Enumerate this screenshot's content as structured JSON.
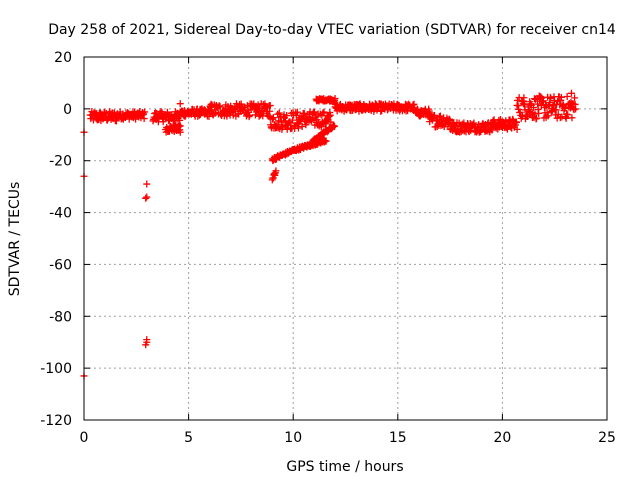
{
  "chart_data": {
    "type": "scatter",
    "title": "Day 258 of 2021, Sidereal Day-to-day VTEC variation (SDTVAR) for receiver cn14",
    "xlabel": "GPS time / hours",
    "ylabel": "SDTVAR / TECUs",
    "xlim": [
      0,
      25
    ],
    "ylim": [
      -120,
      20
    ],
    "xticks": [
      0,
      5,
      10,
      15,
      20,
      25
    ],
    "yticks": [
      20,
      0,
      -20,
      -40,
      -60,
      -80,
      -100,
      -120
    ],
    "grid": true,
    "marker": "+",
    "color": "#ff0000",
    "series": [
      {
        "name": "SDTVAR",
        "segments": [
          {
            "x0": 0.3,
            "x1": 1.6,
            "y": [
              -1,
              -5
            ]
          },
          {
            "x0": 1.6,
            "x1": 2.9,
            "y": [
              -1,
              -4
            ]
          },
          {
            "x0": 3.3,
            "x1": 4.6,
            "y": [
              -1,
              -5
            ]
          },
          {
            "x0": 3.9,
            "x1": 4.6,
            "y": [
              -6,
              -9
            ]
          },
          {
            "x0": 4.6,
            "x1": 6.0,
            "y": [
              0,
              -3
            ]
          },
          {
            "x0": 6.0,
            "x1": 8.9,
            "y": [
              2,
              -3
            ]
          },
          {
            "x0": 8.9,
            "x1": 10.3,
            "y": [
              -1,
              -8
            ]
          },
          {
            "x0": 10.3,
            "x1": 11.8,
            "y": [
              -1,
              -7
            ]
          },
          {
            "x0": 11.1,
            "x1": 12.0,
            "y": [
              4,
              3
            ]
          },
          {
            "x0": 12.0,
            "x1": 13.5,
            "y": [
              2,
              -1
            ]
          },
          {
            "x0": 13.5,
            "x1": 15.8,
            "y": [
              2,
              -1
            ]
          },
          {
            "x0": 15.8,
            "x1": 16.5,
            "y": [
              0,
              -3
            ]
          },
          {
            "x0": 16.5,
            "x1": 17.5,
            "y": [
              -2,
              -7
            ]
          },
          {
            "x0": 17.5,
            "x1": 19.5,
            "y": [
              -5,
              -9
            ]
          },
          {
            "x0": 19.5,
            "x1": 20.7,
            "y": [
              -4,
              -8
            ]
          },
          {
            "x0": 20.7,
            "x1": 23.5,
            "y": [
              5,
              -4
            ]
          }
        ],
        "trends": [
          {
            "x": [
              9.0,
              10.0,
              11.0,
              11.6
            ],
            "y": [
              -19.5,
              -16.0,
              -13.5,
              -12.0
            ]
          },
          {
            "x": [
              10.9,
              11.5,
              12.0
            ],
            "y": [
              -13.0,
              -9.0,
              -6.5
            ]
          },
          {
            "x": [
              9.0,
              9.2
            ],
            "y": [
              -27.0,
              -24.0
            ]
          }
        ],
        "points": [
          {
            "x": 0.0,
            "y": -103
          },
          {
            "x": 0.0,
            "y": -26
          },
          {
            "x": 0.0,
            "y": -9
          },
          {
            "x": 3.0,
            "y": -29
          },
          {
            "x": 3.0,
            "y": -34
          },
          {
            "x": 2.95,
            "y": -34.5
          },
          {
            "x": 3.0,
            "y": -89
          },
          {
            "x": 3.0,
            "y": -90
          },
          {
            "x": 2.95,
            "y": -91
          },
          {
            "x": 4.6,
            "y": 2
          },
          {
            "x": 4.6,
            "y": -9
          },
          {
            "x": 4.5,
            "y": -7
          },
          {
            "x": 21.0,
            "y": 3
          },
          {
            "x": 20.5,
            "y": -4
          },
          {
            "x": 23.3,
            "y": 6
          }
        ]
      }
    ]
  }
}
